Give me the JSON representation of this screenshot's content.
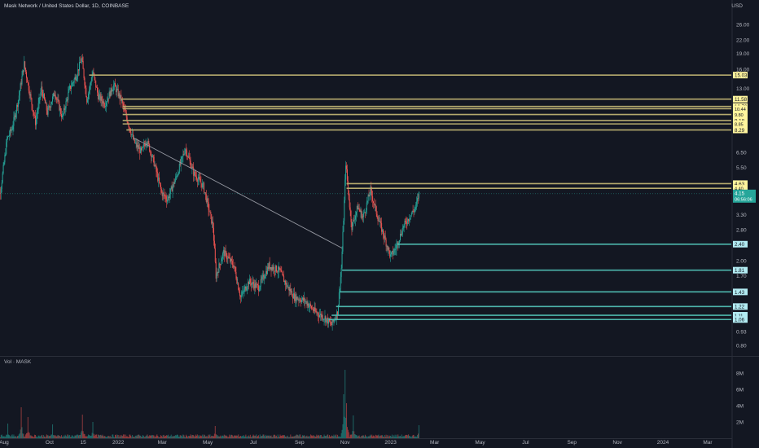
{
  "chart_data": {
    "type": "candlestick",
    "title": "Mask Network / United States Dollar, 1D, COINBASE",
    "currency": "USD",
    "scale": "log",
    "ylim": [
      0.72,
      30
    ],
    "last_price": {
      "value": 4.15,
      "label": "4.15",
      "countdown": "06:56:06"
    },
    "colors": {
      "background": "#131722",
      "up": "#26a69a",
      "down": "#ef5350",
      "resistance": "#b5aa6e",
      "support": "#4db6ac",
      "trendline": "#9598a1",
      "label_yellow": "#fff59d",
      "label_cyan": "#b2ebf2",
      "last_price": "#26a69a",
      "text": "#b2b5be"
    },
    "y_ticks": [
      "26.00",
      "22.00",
      "19.00",
      "16.00",
      "13.00",
      "6.50",
      "5.50",
      "3.30",
      "2.80",
      "2.00",
      "1.70",
      "0.93",
      "0.80"
    ],
    "x_ticks": [
      {
        "label": "Aug",
        "date": "2021-08-01"
      },
      {
        "label": "Oct",
        "date": "2021-10-01"
      },
      {
        "label": "15",
        "date": "2021-11-15"
      },
      {
        "label": "2022",
        "date": "2022-01-01"
      },
      {
        "label": "Mar",
        "date": "2022-03-01"
      },
      {
        "label": "May",
        "date": "2022-05-01"
      },
      {
        "label": "Jul",
        "date": "2022-07-01"
      },
      {
        "label": "Sep",
        "date": "2022-09-01"
      },
      {
        "label": "Nov",
        "date": "2022-11-01"
      },
      {
        "label": "2023",
        "date": "2023-01-01"
      },
      {
        "label": "Mar",
        "date": "2023-03-01"
      },
      {
        "label": "May",
        "date": "2023-05-01"
      },
      {
        "label": "Jul",
        "date": "2023-07-01"
      },
      {
        "label": "Sep",
        "date": "2023-09-01"
      },
      {
        "label": "Nov",
        "date": "2023-11-01"
      },
      {
        "label": "2024",
        "date": "2024-01-01"
      },
      {
        "label": "Mar",
        "date": "2024-03-01"
      }
    ],
    "price_path": [
      {
        "date": "2021-07-20",
        "price": 3.3
      },
      {
        "date": "2021-07-28",
        "price": 4.5
      },
      {
        "date": "2021-08-05",
        "price": 7.5
      },
      {
        "date": "2021-08-12",
        "price": 8.5
      },
      {
        "date": "2021-08-20",
        "price": 11.5
      },
      {
        "date": "2021-08-28",
        "price": 17.0
      },
      {
        "date": "2021-09-05",
        "price": 12.0
      },
      {
        "date": "2021-09-12",
        "price": 9.0
      },
      {
        "date": "2021-09-20",
        "price": 13.0
      },
      {
        "date": "2021-09-28",
        "price": 10.0
      },
      {
        "date": "2021-10-08",
        "price": 12.5
      },
      {
        "date": "2021-10-18",
        "price": 9.5
      },
      {
        "date": "2021-10-28",
        "price": 13.0
      },
      {
        "date": "2021-11-06",
        "price": 15.0
      },
      {
        "date": "2021-11-13",
        "price": 18.0
      },
      {
        "date": "2021-11-20",
        "price": 11.5
      },
      {
        "date": "2021-11-28",
        "price": 15.5
      },
      {
        "date": "2021-12-05",
        "price": 12.0
      },
      {
        "date": "2021-12-14",
        "price": 11.0
      },
      {
        "date": "2021-12-26",
        "price": 13.5
      },
      {
        "date": "2022-01-05",
        "price": 11.5
      },
      {
        "date": "2022-01-12",
        "price": 9.5
      },
      {
        "date": "2022-01-22",
        "price": 7.3
      },
      {
        "date": "2022-02-01",
        "price": 6.5
      },
      {
        "date": "2022-02-08",
        "price": 7.5
      },
      {
        "date": "2022-02-18",
        "price": 5.8
      },
      {
        "date": "2022-02-28",
        "price": 4.2
      },
      {
        "date": "2022-03-08",
        "price": 3.9
      },
      {
        "date": "2022-03-20",
        "price": 5.0
      },
      {
        "date": "2022-04-01",
        "price": 6.8
      },
      {
        "date": "2022-04-12",
        "price": 5.2
      },
      {
        "date": "2022-04-25",
        "price": 4.5
      },
      {
        "date": "2022-05-08",
        "price": 2.9
      },
      {
        "date": "2022-05-12",
        "price": 1.7
      },
      {
        "date": "2022-05-22",
        "price": 2.2
      },
      {
        "date": "2022-06-05",
        "price": 1.9
      },
      {
        "date": "2022-06-14",
        "price": 1.35
      },
      {
        "date": "2022-06-25",
        "price": 1.6
      },
      {
        "date": "2022-07-08",
        "price": 1.5
      },
      {
        "date": "2022-07-22",
        "price": 1.9
      },
      {
        "date": "2022-08-05",
        "price": 1.8
      },
      {
        "date": "2022-08-14",
        "price": 1.55
      },
      {
        "date": "2022-08-25",
        "price": 1.35
      },
      {
        "date": "2022-09-08",
        "price": 1.3
      },
      {
        "date": "2022-09-22",
        "price": 1.15
      },
      {
        "date": "2022-10-05",
        "price": 1.08
      },
      {
        "date": "2022-10-14",
        "price": 1.0
      },
      {
        "date": "2022-10-22",
        "price": 1.15
      },
      {
        "date": "2022-10-27",
        "price": 1.85
      },
      {
        "date": "2022-10-31",
        "price": 3.8
      },
      {
        "date": "2022-11-02",
        "price": 5.8
      },
      {
        "date": "2022-11-05",
        "price": 4.3
      },
      {
        "date": "2022-11-10",
        "price": 2.9
      },
      {
        "date": "2022-11-18",
        "price": 3.6
      },
      {
        "date": "2022-11-25",
        "price": 3.2
      },
      {
        "date": "2022-12-05",
        "price": 4.3
      },
      {
        "date": "2022-12-15",
        "price": 3.2
      },
      {
        "date": "2022-12-25",
        "price": 2.5
      },
      {
        "date": "2023-01-01",
        "price": 2.1
      },
      {
        "date": "2023-01-08",
        "price": 2.3
      },
      {
        "date": "2023-01-18",
        "price": 2.9
      },
      {
        "date": "2023-01-28",
        "price": 3.3
      },
      {
        "date": "2023-02-04",
        "price": 3.6
      },
      {
        "date": "2023-02-08",
        "price": 4.15
      }
    ],
    "volume_pane": {
      "title": "Vol · MASK",
      "y_ticks": [
        "8M",
        "6M",
        "4M",
        "2M"
      ],
      "ylim": [
        0,
        9000000
      ],
      "peaks": [
        {
          "date": "2021-07-23",
          "value": 1600000
        },
        {
          "date": "2021-08-06",
          "value": 1800000
        },
        {
          "date": "2021-08-24",
          "value": 3800000
        },
        {
          "date": "2021-09-02",
          "value": 2600000
        },
        {
          "date": "2021-10-05",
          "value": 1700000
        },
        {
          "date": "2021-11-14",
          "value": 2900000
        },
        {
          "date": "2021-11-28",
          "value": 2000000
        },
        {
          "date": "2022-05-11",
          "value": 1500000
        },
        {
          "date": "2022-10-30",
          "value": 5400000
        },
        {
          "date": "2022-11-01",
          "value": 8400000
        },
        {
          "date": "2022-11-03",
          "value": 4300000
        },
        {
          "date": "2022-11-12",
          "value": 2800000
        },
        {
          "date": "2023-02-08",
          "value": 1600000
        }
      ]
    },
    "horizontal_levels": [
      {
        "value": 15.03,
        "label": "15.03",
        "kind": "resistance"
      },
      {
        "value": 11.58,
        "label": "11.58",
        "kind": "resistance"
      },
      {
        "value": 10.7,
        "label": "10.70",
        "kind": "resistance"
      },
      {
        "value": 10.44,
        "label": "10.44",
        "kind": "resistance"
      },
      {
        "value": 9.8,
        "label": "9.80",
        "kind": "resistance"
      },
      {
        "value": 9.18,
        "label": "9.18",
        "kind": "resistance"
      },
      {
        "value": 8.85,
        "label": "8.85",
        "kind": "resistance"
      },
      {
        "value": 8.29,
        "label": "8.29",
        "kind": "resistance"
      },
      {
        "value": 4.63,
        "label": "4.63",
        "kind": "resistance"
      },
      {
        "value": 4.4,
        "label": "4.40",
        "kind": "resistance"
      },
      {
        "value": 2.4,
        "label": "2.40",
        "kind": "support"
      },
      {
        "value": 1.81,
        "label": "1.81",
        "kind": "support"
      },
      {
        "value": 1.43,
        "label": "1.43",
        "kind": "support"
      },
      {
        "value": 1.22,
        "label": "1.22",
        "kind": "support"
      },
      {
        "value": 1.11,
        "label": "1.11",
        "kind": "support"
      },
      {
        "value": 1.06,
        "label": "1.06",
        "kind": "support"
      }
    ],
    "trendline": {
      "from": {
        "date": "2022-01-22",
        "price": 7.6
      },
      "to": {
        "date": "2022-10-28",
        "price": 2.3
      }
    },
    "level_line_start": [
      {
        "value": 15.03,
        "date": "2021-11-23"
      },
      {
        "value": 11.58,
        "date": "2022-01-05"
      },
      {
        "value": 10.7,
        "date": "2022-01-07"
      },
      {
        "value": 10.44,
        "date": "2022-01-07"
      },
      {
        "value": 9.8,
        "date": "2022-01-07"
      },
      {
        "value": 9.18,
        "date": "2022-01-07"
      },
      {
        "value": 8.85,
        "date": "2022-01-07"
      },
      {
        "value": 8.29,
        "date": "2022-01-12"
      },
      {
        "value": 4.63,
        "date": "2022-11-03"
      },
      {
        "value": 4.4,
        "date": "2022-11-03"
      },
      {
        "value": 2.4,
        "date": "2023-01-10"
      },
      {
        "value": 1.81,
        "date": "2022-10-28"
      },
      {
        "value": 1.43,
        "date": "2022-10-25"
      },
      {
        "value": 1.22,
        "date": "2022-10-20"
      },
      {
        "value": 1.11,
        "date": "2022-10-14"
      },
      {
        "value": 1.06,
        "date": "2022-10-10"
      }
    ]
  }
}
